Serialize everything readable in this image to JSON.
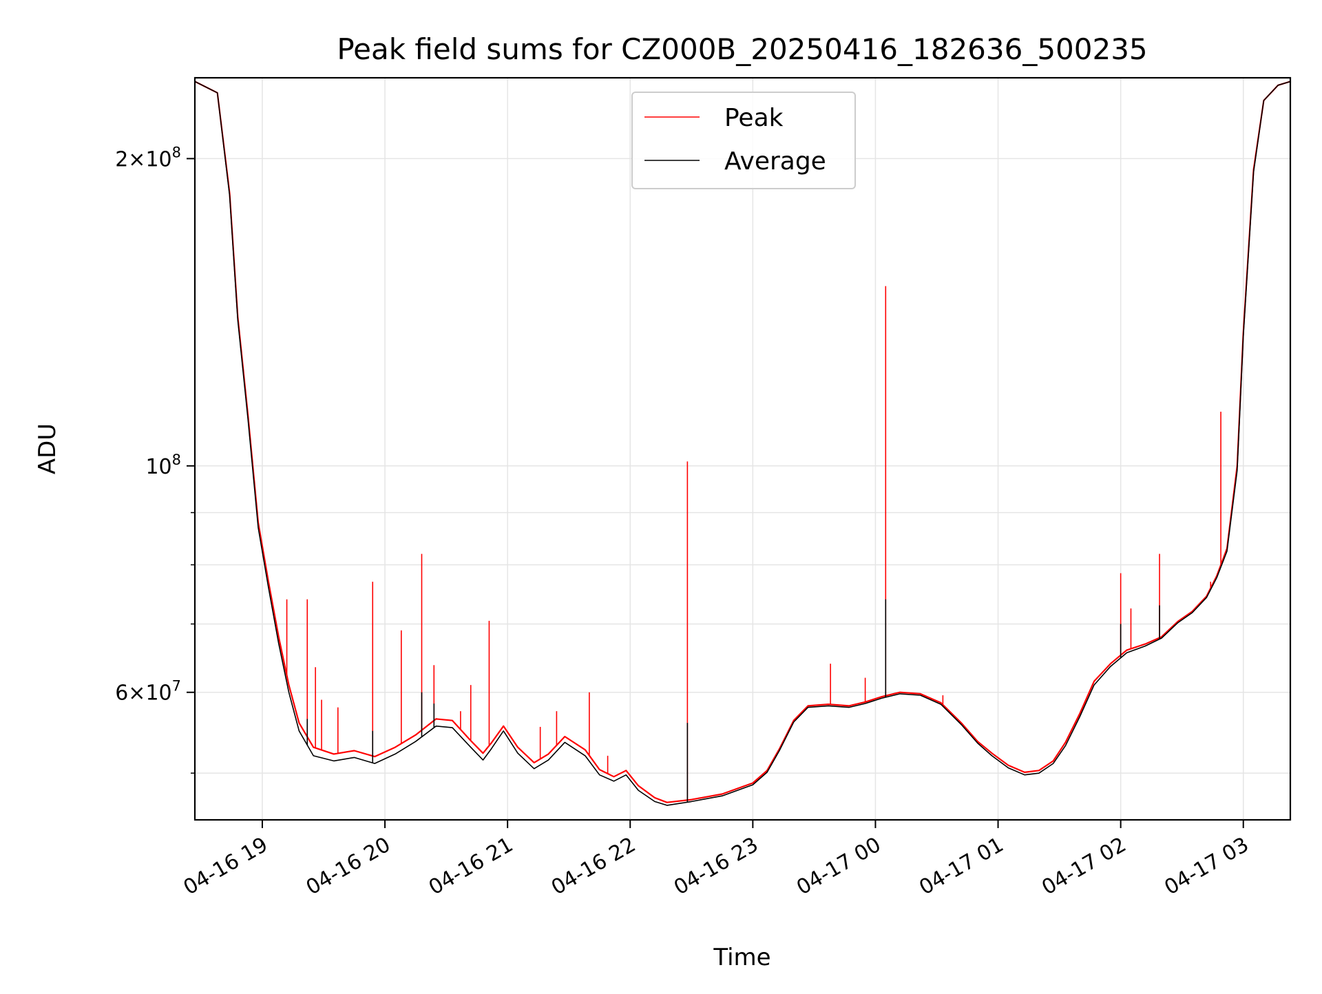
{
  "chart_data": {
    "type": "line",
    "title": "Peak field sums for CZ000B_20250416_182636_500235",
    "xlabel": "Time",
    "ylabel": "ADU",
    "yscale": "log",
    "xlim": [
      "2025-04-16 18:27",
      "2025-04-17 03:23"
    ],
    "ylim": [
      45000000,
      240000000
    ],
    "grid": true,
    "legend": {
      "placement": "upper center"
    },
    "x_ticks": [
      "04-16 19",
      "04-16 20",
      "04-16 21",
      "04-16 22",
      "04-16 23",
      "04-17 00",
      "04-17 01",
      "04-17 02",
      "04-17 03"
    ],
    "x_tick_times": [
      "2025-04-16 19:00",
      "2025-04-16 20:00",
      "2025-04-16 21:00",
      "2025-04-16 22:00",
      "2025-04-16 23:00",
      "2025-04-17 00:00",
      "2025-04-17 01:00",
      "2025-04-17 02:00",
      "2025-04-17 03:00"
    ],
    "y_ticks": [
      {
        "value": 200000000,
        "mantissa": "2",
        "exp": "8"
      },
      {
        "value": 100000000,
        "mantissa": "",
        "exp": "8"
      },
      {
        "value": 60000000,
        "mantissa": "6",
        "exp": "7"
      }
    ],
    "y_minor_ticks": [
      50000000,
      70000000,
      80000000,
      90000000
    ],
    "series": [
      {
        "name": "Peak",
        "color": "#ff0000",
        "points": [
          [
            "2025-04-16 18:27",
            238000000
          ],
          [
            "2025-04-16 18:38",
            232000000
          ],
          [
            "2025-04-16 18:44",
            185000000
          ],
          [
            "2025-04-16 18:48",
            140000000
          ],
          [
            "2025-04-16 18:53",
            112000000
          ],
          [
            "2025-04-16 18:58",
            88000000
          ],
          [
            "2025-04-16 19:03",
            77000000
          ],
          [
            "2025-04-16 19:08",
            68000000
          ],
          [
            "2025-04-16 19:13",
            61000000
          ],
          [
            "2025-04-16 19:18",
            56000000
          ],
          [
            "2025-04-16 19:25",
            53000000
          ],
          [
            "2025-04-16 19:35",
            52200000
          ],
          [
            "2025-04-16 19:45",
            52600000
          ],
          [
            "2025-04-16 19:55",
            51900000
          ],
          [
            "2025-04-16 20:05",
            53000000
          ],
          [
            "2025-04-16 20:15",
            54500000
          ],
          [
            "2025-04-16 20:25",
            56500000
          ],
          [
            "2025-04-16 20:33",
            56300000
          ],
          [
            "2025-04-16 20:42",
            53800000
          ],
          [
            "2025-04-16 20:48",
            52300000
          ],
          [
            "2025-04-16 20:52",
            53500000
          ],
          [
            "2025-04-16 20:58",
            55600000
          ],
          [
            "2025-04-16 21:05",
            53000000
          ],
          [
            "2025-04-16 21:13",
            51200000
          ],
          [
            "2025-04-16 21:20",
            52200000
          ],
          [
            "2025-04-16 21:28",
            54300000
          ],
          [
            "2025-04-16 21:38",
            52700000
          ],
          [
            "2025-04-16 21:45",
            50400000
          ],
          [
            "2025-04-16 21:52",
            49600000
          ],
          [
            "2025-04-16 21:58",
            50300000
          ],
          [
            "2025-04-16 22:04",
            48600000
          ],
          [
            "2025-04-16 22:12",
            47300000
          ],
          [
            "2025-04-16 22:18",
            46800000
          ],
          [
            "2025-04-16 22:30",
            47100000
          ],
          [
            "2025-04-16 22:45",
            47700000
          ],
          [
            "2025-04-16 23:00",
            48900000
          ],
          [
            "2025-04-16 23:07",
            50300000
          ],
          [
            "2025-04-16 23:13",
            52800000
          ],
          [
            "2025-04-16 23:20",
            56300000
          ],
          [
            "2025-04-16 23:27",
            58200000
          ],
          [
            "2025-04-16 23:37",
            58400000
          ],
          [
            "2025-04-16 23:47",
            58200000
          ],
          [
            "2025-04-16 23:55",
            58700000
          ],
          [
            "2025-04-17 00:03",
            59400000
          ],
          [
            "2025-04-17 00:12",
            60000000
          ],
          [
            "2025-04-17 00:22",
            59800000
          ],
          [
            "2025-04-17 00:32",
            58600000
          ],
          [
            "2025-04-17 00:42",
            56000000
          ],
          [
            "2025-04-17 00:50",
            53700000
          ],
          [
            "2025-04-17 00:57",
            52300000
          ],
          [
            "2025-04-17 01:05",
            50900000
          ],
          [
            "2025-04-17 01:13",
            50100000
          ],
          [
            "2025-04-17 01:20",
            50300000
          ],
          [
            "2025-04-17 01:27",
            51400000
          ],
          [
            "2025-04-17 01:33",
            53600000
          ],
          [
            "2025-04-17 01:40",
            57200000
          ],
          [
            "2025-04-17 01:47",
            61500000
          ],
          [
            "2025-04-17 01:55",
            64000000
          ],
          [
            "2025-04-17 02:03",
            66000000
          ],
          [
            "2025-04-17 02:12",
            66900000
          ],
          [
            "2025-04-17 02:20",
            68000000
          ],
          [
            "2025-04-17 02:28",
            70400000
          ],
          [
            "2025-04-17 02:35",
            72000000
          ],
          [
            "2025-04-17 02:42",
            74500000
          ],
          [
            "2025-04-17 02:47",
            78000000
          ],
          [
            "2025-04-17 02:52",
            83000000
          ],
          [
            "2025-04-17 02:57",
            100000000
          ],
          [
            "2025-04-17 03:00",
            135000000
          ],
          [
            "2025-04-17 03:05",
            195000000
          ],
          [
            "2025-04-17 03:10",
            228000000
          ],
          [
            "2025-04-17 03:17",
            236000000
          ],
          [
            "2025-04-17 03:23",
            238000000
          ]
        ],
        "spikes": [
          [
            "2025-04-16 19:12",
            74000000
          ],
          [
            "2025-04-16 19:22",
            74000000
          ],
          [
            "2025-04-16 19:26",
            63500000
          ],
          [
            "2025-04-16 19:29",
            59000000
          ],
          [
            "2025-04-16 19:37",
            58000000
          ],
          [
            "2025-04-16 19:54",
            77000000
          ],
          [
            "2025-04-16 20:08",
            69000000
          ],
          [
            "2025-04-16 20:18",
            82000000
          ],
          [
            "2025-04-16 20:24",
            63800000
          ],
          [
            "2025-04-16 20:37",
            57500000
          ],
          [
            "2025-04-16 20:42",
            61000000
          ],
          [
            "2025-04-16 20:51",
            70500000
          ],
          [
            "2025-04-16 21:16",
            55500000
          ],
          [
            "2025-04-16 21:24",
            57500000
          ],
          [
            "2025-04-16 21:40",
            60000000
          ],
          [
            "2025-04-16 21:49",
            52000000
          ],
          [
            "2025-04-16 22:28",
            101000000
          ],
          [
            "2025-04-16 23:38",
            64000000
          ],
          [
            "2025-04-16 23:55",
            62000000
          ],
          [
            "2025-04-17 00:05",
            150000000
          ],
          [
            "2025-04-17 00:33",
            59600000
          ],
          [
            "2025-04-17 02:00",
            78500000
          ],
          [
            "2025-04-17 02:05",
            72500000
          ],
          [
            "2025-04-17 02:19",
            82000000
          ],
          [
            "2025-04-17 02:44",
            77000000
          ],
          [
            "2025-04-17 02:49",
            113000000
          ]
        ]
      },
      {
        "name": "Average",
        "color": "#000000",
        "points": [
          [
            "2025-04-16 18:27",
            238000000
          ],
          [
            "2025-04-16 18:38",
            232000000
          ],
          [
            "2025-04-16 18:44",
            184000000
          ],
          [
            "2025-04-16 18:48",
            139000000
          ],
          [
            "2025-04-16 18:53",
            111000000
          ],
          [
            "2025-04-16 18:58",
            87000000
          ],
          [
            "2025-04-16 19:03",
            76000000
          ],
          [
            "2025-04-16 19:08",
            67000000
          ],
          [
            "2025-04-16 19:13",
            60000000
          ],
          [
            "2025-04-16 19:18",
            55000000
          ],
          [
            "2025-04-16 19:25",
            52000000
          ],
          [
            "2025-04-16 19:35",
            51400000
          ],
          [
            "2025-04-16 19:45",
            51800000
          ],
          [
            "2025-04-16 19:55",
            51100000
          ],
          [
            "2025-04-16 20:05",
            52200000
          ],
          [
            "2025-04-16 20:15",
            53700000
          ],
          [
            "2025-04-16 20:25",
            55600000
          ],
          [
            "2025-04-16 20:33",
            55400000
          ],
          [
            "2025-04-16 20:42",
            53000000
          ],
          [
            "2025-04-16 20:48",
            51500000
          ],
          [
            "2025-04-16 20:52",
            52800000
          ],
          [
            "2025-04-16 20:58",
            55000000
          ],
          [
            "2025-04-16 21:05",
            52300000
          ],
          [
            "2025-04-16 21:13",
            50500000
          ],
          [
            "2025-04-16 21:20",
            51500000
          ],
          [
            "2025-04-16 21:28",
            53600000
          ],
          [
            "2025-04-16 21:38",
            52000000
          ],
          [
            "2025-04-16 21:45",
            49800000
          ],
          [
            "2025-04-16 21:52",
            49100000
          ],
          [
            "2025-04-16 21:58",
            49800000
          ],
          [
            "2025-04-16 22:04",
            48100000
          ],
          [
            "2025-04-16 22:12",
            46900000
          ],
          [
            "2025-04-16 22:18",
            46500000
          ],
          [
            "2025-04-16 22:30",
            46900000
          ],
          [
            "2025-04-16 22:45",
            47500000
          ],
          [
            "2025-04-16 23:00",
            48700000
          ],
          [
            "2025-04-16 23:07",
            50100000
          ],
          [
            "2025-04-16 23:13",
            52600000
          ],
          [
            "2025-04-16 23:20",
            56100000
          ],
          [
            "2025-04-16 23:27",
            58000000
          ],
          [
            "2025-04-16 23:37",
            58200000
          ],
          [
            "2025-04-16 23:47",
            58000000
          ],
          [
            "2025-04-16 23:55",
            58500000
          ],
          [
            "2025-04-17 00:03",
            59200000
          ],
          [
            "2025-04-17 00:12",
            59800000
          ],
          [
            "2025-04-17 00:22",
            59600000
          ],
          [
            "2025-04-17 00:32",
            58400000
          ],
          [
            "2025-04-17 00:42",
            55800000
          ],
          [
            "2025-04-17 00:50",
            53500000
          ],
          [
            "2025-04-17 00:57",
            52000000
          ],
          [
            "2025-04-17 01:05",
            50600000
          ],
          [
            "2025-04-17 01:13",
            49800000
          ],
          [
            "2025-04-17 01:20",
            50000000
          ],
          [
            "2025-04-17 01:27",
            51100000
          ],
          [
            "2025-04-17 01:33",
            53200000
          ],
          [
            "2025-04-17 01:40",
            56800000
          ],
          [
            "2025-04-17 01:47",
            61000000
          ],
          [
            "2025-04-17 01:55",
            63600000
          ],
          [
            "2025-04-17 02:03",
            65600000
          ],
          [
            "2025-04-17 02:12",
            66600000
          ],
          [
            "2025-04-17 02:20",
            67800000
          ],
          [
            "2025-04-17 02:28",
            70200000
          ],
          [
            "2025-04-17 02:35",
            71800000
          ],
          [
            "2025-04-17 02:42",
            74300000
          ],
          [
            "2025-04-17 02:47",
            77700000
          ],
          [
            "2025-04-17 02:52",
            82500000
          ],
          [
            "2025-04-17 02:57",
            99000000
          ],
          [
            "2025-04-17 03:00",
            134000000
          ],
          [
            "2025-04-17 03:05",
            194000000
          ],
          [
            "2025-04-17 03:10",
            228000000
          ],
          [
            "2025-04-17 03:17",
            236000000
          ],
          [
            "2025-04-17 03:23",
            238000000
          ]
        ],
        "spikes": [
          [
            "2025-04-16 19:22",
            56500000
          ],
          [
            "2025-04-16 19:54",
            55000000
          ],
          [
            "2025-04-16 20:18",
            60000000
          ],
          [
            "2025-04-16 20:24",
            58500000
          ],
          [
            "2025-04-16 22:28",
            56000000
          ],
          [
            "2025-04-17 00:05",
            74000000
          ],
          [
            "2025-04-17 02:00",
            70000000
          ],
          [
            "2025-04-17 02:19",
            73000000
          ]
        ]
      }
    ]
  }
}
